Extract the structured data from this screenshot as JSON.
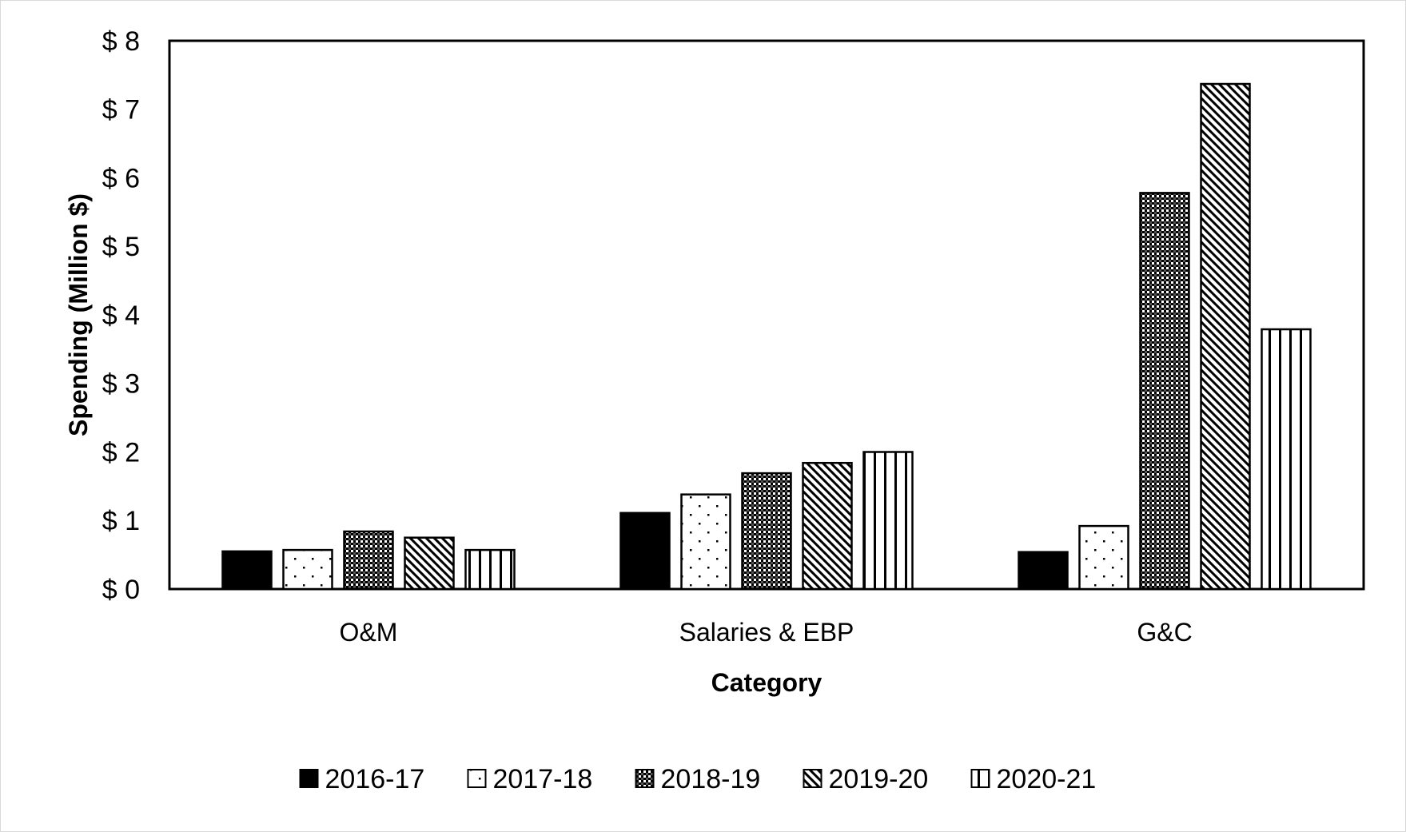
{
  "chart_data": {
    "type": "bar",
    "title": "",
    "xlabel": "Category",
    "ylabel": "Spending (Million $)",
    "ylim": [
      0,
      8
    ],
    "yticks": [
      "$ 0",
      "$ 1",
      "$ 2",
      "$ 3",
      "$ 4",
      "$ 5",
      "$ 6",
      "$ 7",
      "$ 8"
    ],
    "categories": [
      "O&M",
      "Salaries & EBP",
      "G&C"
    ],
    "grid": false,
    "legend_position": "bottom",
    "series": [
      {
        "name": "2016-17",
        "pattern": "solid",
        "values": [
          0.55,
          1.11,
          0.54
        ]
      },
      {
        "name": "2017-18",
        "pattern": "dots",
        "values": [
          0.57,
          1.38,
          0.92
        ]
      },
      {
        "name": "2018-19",
        "pattern": "checker",
        "values": [
          0.84,
          1.69,
          5.78
        ]
      },
      {
        "name": "2019-20",
        "pattern": "diagonal",
        "values": [
          0.75,
          1.84,
          7.37
        ]
      },
      {
        "name": "2020-21",
        "pattern": "vertical",
        "values": [
          0.57,
          2.0,
          3.79
        ]
      }
    ]
  }
}
